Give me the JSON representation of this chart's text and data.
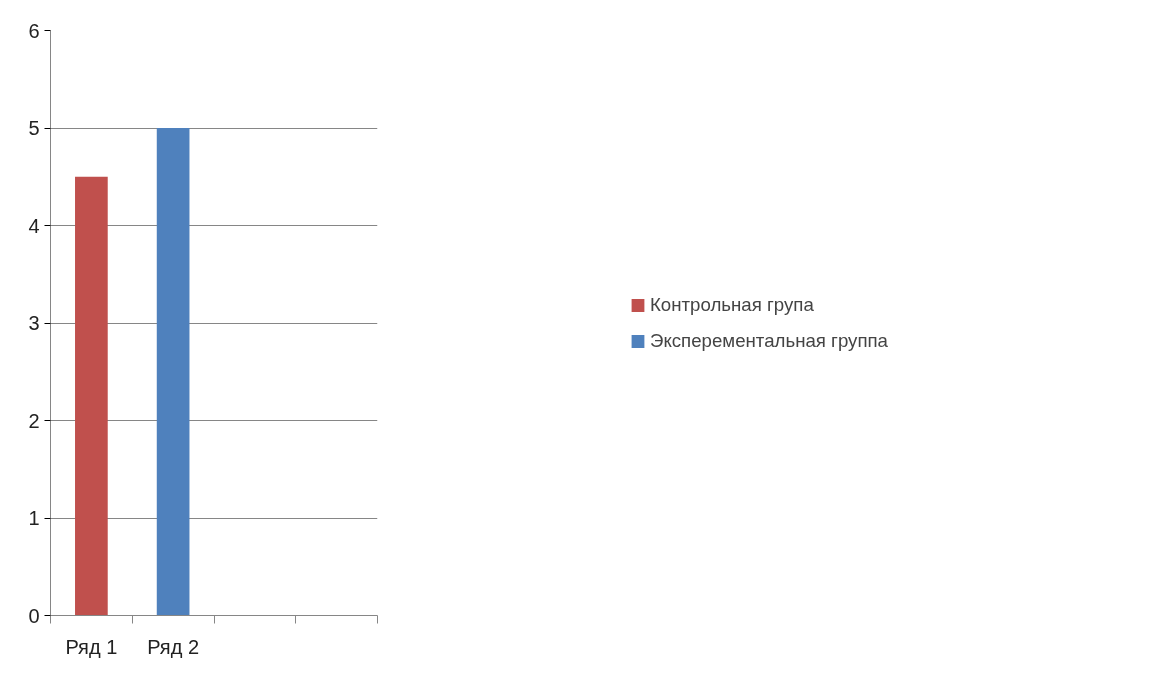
{
  "chart_data": {
    "type": "bar",
    "categories": [
      "Ряд 1",
      "Ряд 2",
      null,
      null
    ],
    "series": [
      {
        "name": "Контрольная група",
        "color": "#c0504d",
        "values": [
          4.5,
          null,
          null,
          null
        ]
      },
      {
        "name": "Эксперементальная группа",
        "color": "#4f81bd",
        "values": [
          null,
          5,
          null,
          null
        ]
      }
    ],
    "ylim": [
      0,
      6
    ],
    "yticks": [
      0,
      1,
      2,
      3,
      4,
      5,
      6
    ],
    "grid": "y",
    "legend": "right"
  }
}
